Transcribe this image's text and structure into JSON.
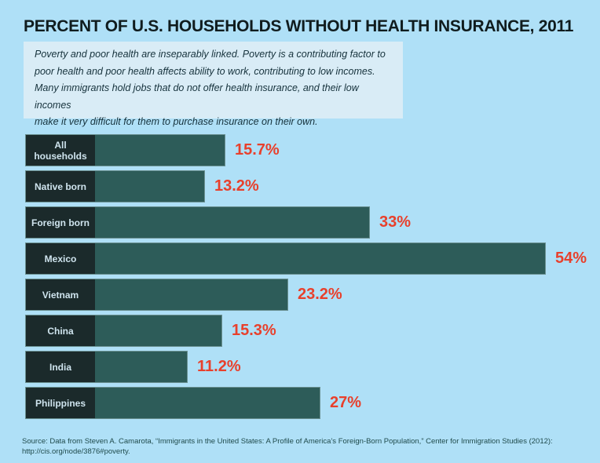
{
  "title": "PERCENT OF U.S. HOUSEHOLDS WITHOUT HEALTH INSURANCE, 2011",
  "intro": {
    "lines": [
      "Poverty and poor health are inseparably linked. Poverty is a contributing factor to",
      "poor health and poor health affects ability to work, contributing to low incomes.",
      "Many immigrants hold jobs that do not offer health insurance, and their low incomes",
      "make it very difficult for them to purchase insurance on their own."
    ]
  },
  "source": {
    "line1": "Source: Data from Steven A. Camarota, “Immigrants in the United States: A Profile of America’s Foreign-Born Population,” Center for Immigration Studies (2012):",
    "line2": "http://cis.org/node/3876#poverty."
  },
  "colors": {
    "background": "#afe0f7",
    "intro_panel": "#d9ecf6",
    "bar_fill": "#2d5c59",
    "category_box": "#1b2a2b",
    "category_text": "#cfe4ee",
    "value_label": "#e8402c",
    "title_text": "#101c1e",
    "source_text": "#1f4a4b"
  },
  "chart_data": {
    "type": "bar",
    "orientation": "horizontal",
    "title": "PERCENT OF U.S. HOUSEHOLDS WITHOUT HEALTH INSURANCE, 2011",
    "categories": [
      "All households",
      "Native born",
      "Foreign born",
      "Mexico",
      "Vietnam",
      "China",
      "India",
      "Philippines"
    ],
    "values": [
      15.7,
      13.2,
      33,
      54,
      23.2,
      15.3,
      11.2,
      27
    ],
    "value_labels": [
      "15.7%",
      "13.2%",
      "33%",
      "54%",
      "23.2%",
      "15.3%",
      "11.2%",
      "27%"
    ],
    "xlabel": "",
    "ylabel": "",
    "xlim": [
      0,
      57
    ],
    "grid": false,
    "legend": false,
    "value_label_position": "right-of-bar",
    "value_label_color": "#e8402c",
    "bar_color": "#2d5c59"
  }
}
